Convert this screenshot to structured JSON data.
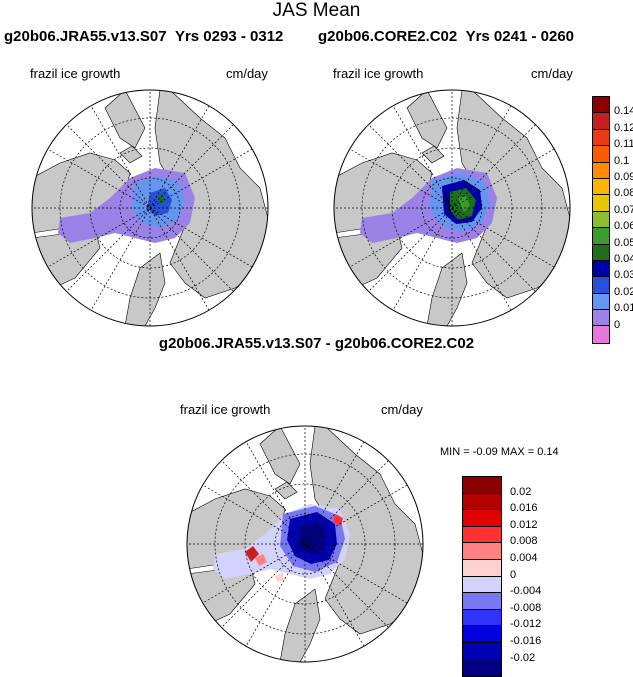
{
  "figure_title": "JAS Mean",
  "panels": [
    {
      "experiment": "g20b06.JRA55.v13.S07",
      "years": "Yrs 0293 - 0312",
      "variable": "frazil ice growth",
      "units": "cm/day"
    },
    {
      "experiment": "g20b06.CORE2.C02",
      "years": "Yrs 0241 - 0260",
      "variable": "frazil ice growth",
      "units": "cm/day"
    }
  ],
  "difference_panel": {
    "title": "g20b06.JRA55.v13.S07 - g20b06.CORE2.C02",
    "variable": "frazil ice growth",
    "units": "cm/day",
    "minmax_text": "MIN =  -0.09 MAX =   0.14"
  },
  "colorbars": {
    "mean": {
      "labels": [
        "0.14",
        "0.12",
        "0.11",
        "0.1",
        "0.09",
        "0.08",
        "0.07",
        "0.06",
        "0.05",
        "0.04",
        "0.03",
        "0.02",
        "0.01",
        "0"
      ],
      "colors": [
        "#8b0000",
        "#c81e1e",
        "#e83a14",
        "#ff5a00",
        "#ff8c00",
        "#ffb400",
        "#e6c800",
        "#8cbe32",
        "#3c9b2d",
        "#1e6e1e",
        "#0000aa",
        "#2850dc",
        "#6496f0",
        "#9b82e6",
        "#e678dc"
      ]
    },
    "diff": {
      "labels": [
        "0.02",
        "0.016",
        "0.012",
        "0.008",
        "0.004",
        "0",
        "-0.004",
        "-0.008",
        "-0.012",
        "-0.016",
        "-0.02"
      ],
      "colors": [
        "#8b0000",
        "#b40000",
        "#e10000",
        "#ff3232",
        "#ff8282",
        "#ffd2d2",
        "#d2d2fa",
        "#7878f5",
        "#3232ff",
        "#0000e1",
        "#0000b4",
        "#000080"
      ]
    }
  }
}
